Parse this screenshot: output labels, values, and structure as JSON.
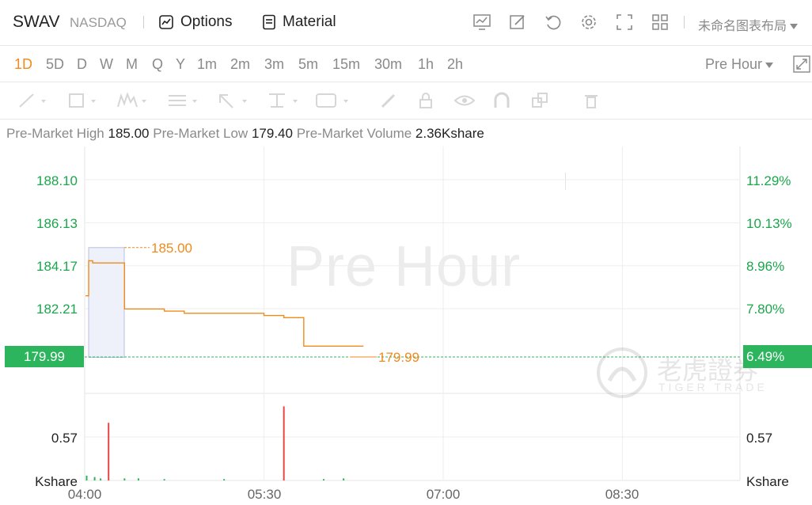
{
  "header": {
    "ticker": "SWAV",
    "exchange": "NASDAQ",
    "options_label": "Options",
    "material_label": "Material",
    "layout_name": "未命名图表布局"
  },
  "toolbar_icons": [
    "chart-settings-icon",
    "edit-icon",
    "undo-icon",
    "gear-icon",
    "fullscreen-icon",
    "grid-layout-icon"
  ],
  "periods": {
    "active": "1D",
    "items": [
      "1D",
      "5D",
      "D",
      "W",
      "M",
      "Q",
      "Y",
      "1m",
      "2m",
      "3m",
      "5m",
      "15m",
      "30m",
      "1h",
      "2h"
    ],
    "session_select": "Pre Hour"
  },
  "drawing_tools": [
    "line-tool-icon",
    "rectangle-tool-icon",
    "pattern-tool-icon",
    "text-lines-tool-icon",
    "arrow-tool-icon",
    "measure-tool-icon",
    "label-tool-icon",
    "pencil-icon",
    "lock-icon",
    "eye-icon",
    "magnet-icon",
    "layers-icon",
    "trash-icon"
  ],
  "stats": {
    "high_label": "Pre-Market High",
    "high_value": "185.00",
    "low_label": "Pre-Market Low",
    "low_value": "179.40",
    "volume_label": "Pre-Market Volume",
    "volume_value": "2.36Kshare"
  },
  "chart": {
    "watermark": "Pre Hour",
    "logo_text": "老虎證券",
    "logo_sub": "TIGER TRADE",
    "current_price": "179.99",
    "current_pct": "6.49%",
    "high_annotation": "185.00",
    "last_annotation": "179.99",
    "y_labels": [
      "188.10",
      "186.13",
      "184.17",
      "182.21"
    ],
    "pct_labels": [
      "11.29%",
      "10.13%",
      "8.96%",
      "7.80%"
    ],
    "volume_label": "0.57",
    "volume_unit": "Kshare",
    "x_labels": [
      "04:00",
      "05:30",
      "07:00",
      "08:30"
    ],
    "colors": {
      "price_line": "#f08a1c",
      "up": "#2db55d",
      "down": "#e84545",
      "grid": "#eeeeee"
    }
  },
  "chart_data": {
    "type": "line",
    "title": "",
    "xlabel": "",
    "ylabel": "",
    "x": [
      "04:00",
      "04:02",
      "04:04",
      "04:12",
      "04:20",
      "04:30",
      "04:40",
      "04:50",
      "05:00",
      "05:10",
      "05:25",
      "05:30",
      "05:35",
      "05:40",
      "05:50",
      "06:00",
      "06:10",
      "06:20"
    ],
    "series": [
      {
        "values": [
          182.8,
          184.4,
          184.3,
          184.3,
          182.2,
          182.2,
          182.1,
          182.0,
          182.0,
          182.0,
          182.0,
          181.9,
          181.9,
          181.8,
          180.5,
          180.5,
          180.5,
          180.5
        ]
      }
    ],
    "ylim": [
      179.4,
      188.6
    ],
    "y_ticks": [
      188.1,
      186.13,
      184.17,
      182.21
    ],
    "volume": {
      "x": [
        "04:01",
        "04:05",
        "04:08",
        "04:12",
        "04:20",
        "04:27",
        "04:40",
        "05:10",
        "05:40",
        "06:00",
        "06:10"
      ],
      "values": [
        0.07,
        0.05,
        0.03,
        0.84,
        0.03,
        0.03,
        0.02,
        0.02,
        1.08,
        0.02,
        0.03
      ],
      "colors": [
        "up",
        "up",
        "up",
        "down",
        "up",
        "up",
        "up",
        "up",
        "down",
        "up",
        "up"
      ]
    }
  }
}
